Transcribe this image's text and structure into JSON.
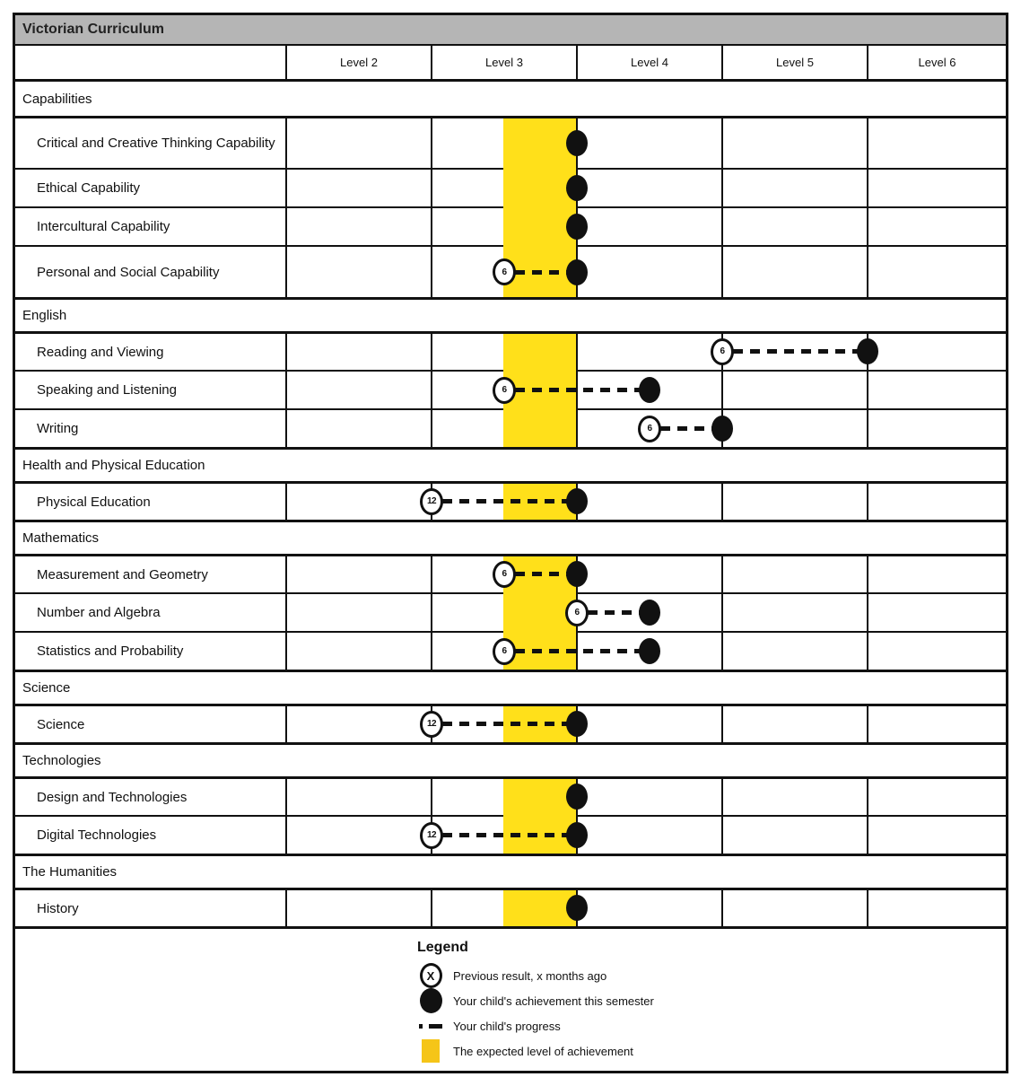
{
  "title": "Victorian Curriculum",
  "colors": {
    "title_bar_bg": "#b5b5b5",
    "band_yellow": "#ffe01a",
    "legend_swatch_yellow": "#f5c518",
    "ink": "#111111"
  },
  "chart_data": {
    "type": "dot-progress-chart",
    "title": "Victorian Curriculum",
    "x_axis": {
      "tick_labels": [
        "Level 2",
        "Level 3",
        "Level 4",
        "Level 5",
        "Level 6"
      ],
      "range_levels_completed": [
        1.0,
        6.0
      ],
      "expected_band_levels_completed": [
        2.5,
        3.0
      ],
      "grid": "table-cells"
    },
    "value_semantics": "values are curriculum levels completed: 3.0 = right edge of Level 3 column, 2.5 = middle of Level 3 column; 'previous' marker is a circled number of months ago joined to the current dot by a dashed progress line",
    "sections": [
      {
        "name": "Capabilities",
        "subjects": [
          {
            "name": "Critical and Creative Thinking Capability",
            "current": 3.0,
            "previous": null
          },
          {
            "name": "Ethical Capability",
            "current": 3.0,
            "previous": null
          },
          {
            "name": "Intercultural Capability",
            "current": 3.0,
            "previous": null
          },
          {
            "name": "Personal and Social Capability",
            "current": 3.0,
            "previous": {
              "months_ago": 6,
              "level": 2.5
            }
          }
        ]
      },
      {
        "name": "English",
        "subjects": [
          {
            "name": "Reading and Viewing",
            "current": 5.0,
            "previous": {
              "months_ago": 6,
              "level": 4.0
            }
          },
          {
            "name": "Speaking and Listening",
            "current": 3.5,
            "previous": {
              "months_ago": 6,
              "level": 2.5
            }
          },
          {
            "name": "Writing",
            "current": 4.0,
            "previous": {
              "months_ago": 6,
              "level": 3.5
            }
          }
        ]
      },
      {
        "name": "Health and Physical Education",
        "subjects": [
          {
            "name": "Physical Education",
            "current": 3.0,
            "previous": {
              "months_ago": 12,
              "level": 2.0
            }
          }
        ]
      },
      {
        "name": "Mathematics",
        "subjects": [
          {
            "name": "Measurement and Geometry",
            "current": 3.0,
            "previous": {
              "months_ago": 6,
              "level": 2.5
            }
          },
          {
            "name": "Number and Algebra",
            "current": 3.5,
            "previous": {
              "months_ago": 6,
              "level": 3.0
            }
          },
          {
            "name": "Statistics and Probability",
            "current": 3.5,
            "previous": {
              "months_ago": 6,
              "level": 2.5
            }
          }
        ]
      },
      {
        "name": "Science",
        "subjects": [
          {
            "name": "Science",
            "current": 3.0,
            "previous": {
              "months_ago": 12,
              "level": 2.0
            }
          }
        ]
      },
      {
        "name": "Technologies",
        "subjects": [
          {
            "name": "Design and Technologies",
            "current": 3.0,
            "previous": null
          },
          {
            "name": "Digital Technologies",
            "current": 3.0,
            "previous": {
              "months_ago": 12,
              "level": 2.0
            }
          }
        ]
      },
      {
        "name": "The Humanities",
        "subjects": [
          {
            "name": "History",
            "current": 3.0,
            "previous": null
          }
        ]
      }
    ]
  },
  "legend": {
    "title": "Legend",
    "items": [
      {
        "icon": "previous-result-circle",
        "symbol_text": "X",
        "label": "Previous result, x months ago"
      },
      {
        "icon": "achievement-dot",
        "label": "Your child's achievement this semester"
      },
      {
        "icon": "progress-dash",
        "label": "Your child's progress"
      },
      {
        "icon": "expected-band-swatch",
        "label": "The expected level of achievement"
      }
    ]
  }
}
